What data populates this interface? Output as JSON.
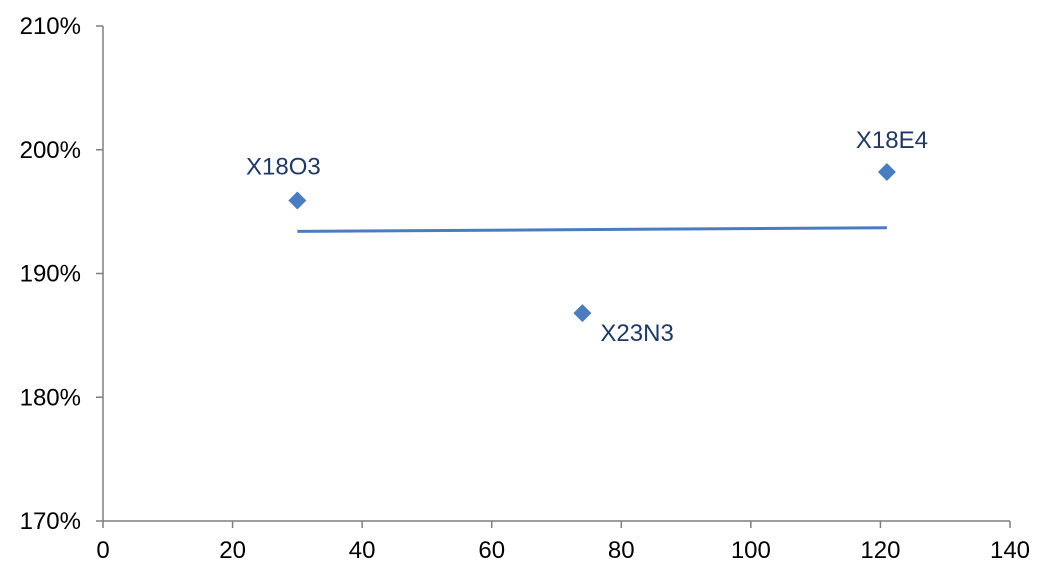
{
  "chart_data": {
    "type": "scatter",
    "title": "",
    "xlabel": "",
    "ylabel": "",
    "xlim": [
      0,
      140
    ],
    "ylim": [
      1.7,
      2.1
    ],
    "x_ticks": [
      0,
      20,
      40,
      60,
      80,
      100,
      120,
      140
    ],
    "y_ticks": [
      1.7,
      1.8,
      1.9,
      2.0,
      2.1
    ],
    "x_tick_labels": [
      "0",
      "20",
      "40",
      "60",
      "80",
      "100",
      "120",
      "140"
    ],
    "y_tick_labels": [
      "170%",
      "180%",
      "190%",
      "200%",
      "210%"
    ],
    "grid": false,
    "legend": "none",
    "points": [
      {
        "label": "X18O3",
        "x": 30,
        "y": 1.959
      },
      {
        "label": "X23N3",
        "x": 74,
        "y": 1.868
      },
      {
        "label": "X18E4",
        "x": 121,
        "y": 1.982
      }
    ],
    "trendline": {
      "x": [
        30,
        121
      ],
      "y": [
        1.934,
        1.937
      ]
    },
    "colors": {
      "marker": "#4a7dbf",
      "line": "#4a7dbf",
      "axis": "#7f7f7f",
      "point_label": "#1f3864"
    }
  }
}
